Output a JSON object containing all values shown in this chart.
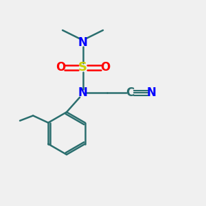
{
  "bg_color": "#f0f0f0",
  "bond_color": "#2a6e6e",
  "N_color": "#0000ff",
  "S_color": "#cccc00",
  "O_color": "#ff0000",
  "C_color": "#2a6e6e",
  "line_width": 1.8,
  "font_size": 11,
  "fig_size": [
    3.0,
    3.0
  ],
  "dpi": 100,
  "xlim": [
    0,
    10
  ],
  "ylim": [
    0,
    10
  ]
}
